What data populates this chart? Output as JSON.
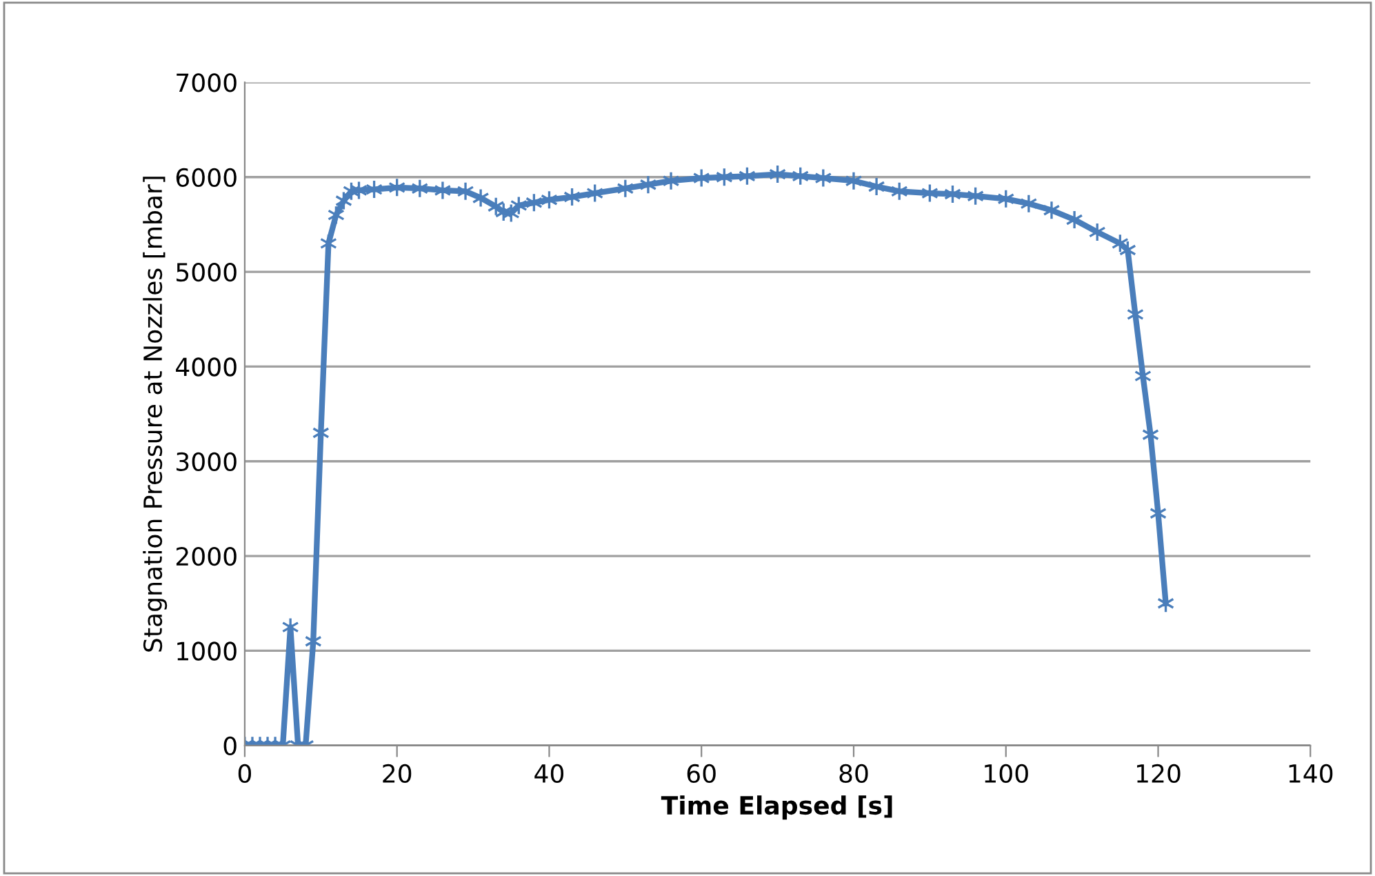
{
  "chart_data": {
    "type": "line",
    "xlabel": "Time Elapsed [s]",
    "ylabel": "Stagnation Pressure at Nozzles [mbar]",
    "xlim": [
      0,
      140
    ],
    "xticks": [
      0,
      20,
      40,
      60,
      80,
      100,
      120,
      140
    ],
    "ylim": [
      0,
      7000
    ],
    "yticks": [
      0,
      1000,
      2000,
      3000,
      4000,
      5000,
      6000,
      7000
    ],
    "grid": "y",
    "legend": false,
    "marker": "cross",
    "line_style": "solid",
    "series": [
      {
        "color": "#4a7ebb",
        "x": [
          0,
          1,
          2,
          3,
          4,
          5,
          6,
          7,
          8,
          9,
          10,
          11,
          12,
          13,
          14,
          15,
          17,
          20,
          23,
          26,
          29,
          31,
          33,
          34,
          35,
          36,
          38,
          40,
          43,
          46,
          50,
          53,
          56,
          60,
          63,
          66,
          70,
          73,
          76,
          80,
          83,
          86,
          90,
          93,
          96,
          100,
          103,
          106,
          109,
          112,
          115,
          116,
          117,
          118,
          119,
          120,
          121
        ],
        "values": [
          0,
          0,
          0,
          0,
          0,
          0,
          1250,
          0,
          0,
          1100,
          3300,
          5300,
          5600,
          5750,
          5850,
          5860,
          5870,
          5890,
          5880,
          5860,
          5850,
          5780,
          5690,
          5630,
          5620,
          5700,
          5730,
          5760,
          5790,
          5830,
          5880,
          5920,
          5960,
          5990,
          6000,
          6010,
          6030,
          6010,
          5990,
          5960,
          5900,
          5850,
          5830,
          5820,
          5800,
          5770,
          5720,
          5650,
          5550,
          5420,
          5300,
          5230,
          4550,
          3900,
          3280,
          2450,
          1500
        ]
      }
    ]
  }
}
